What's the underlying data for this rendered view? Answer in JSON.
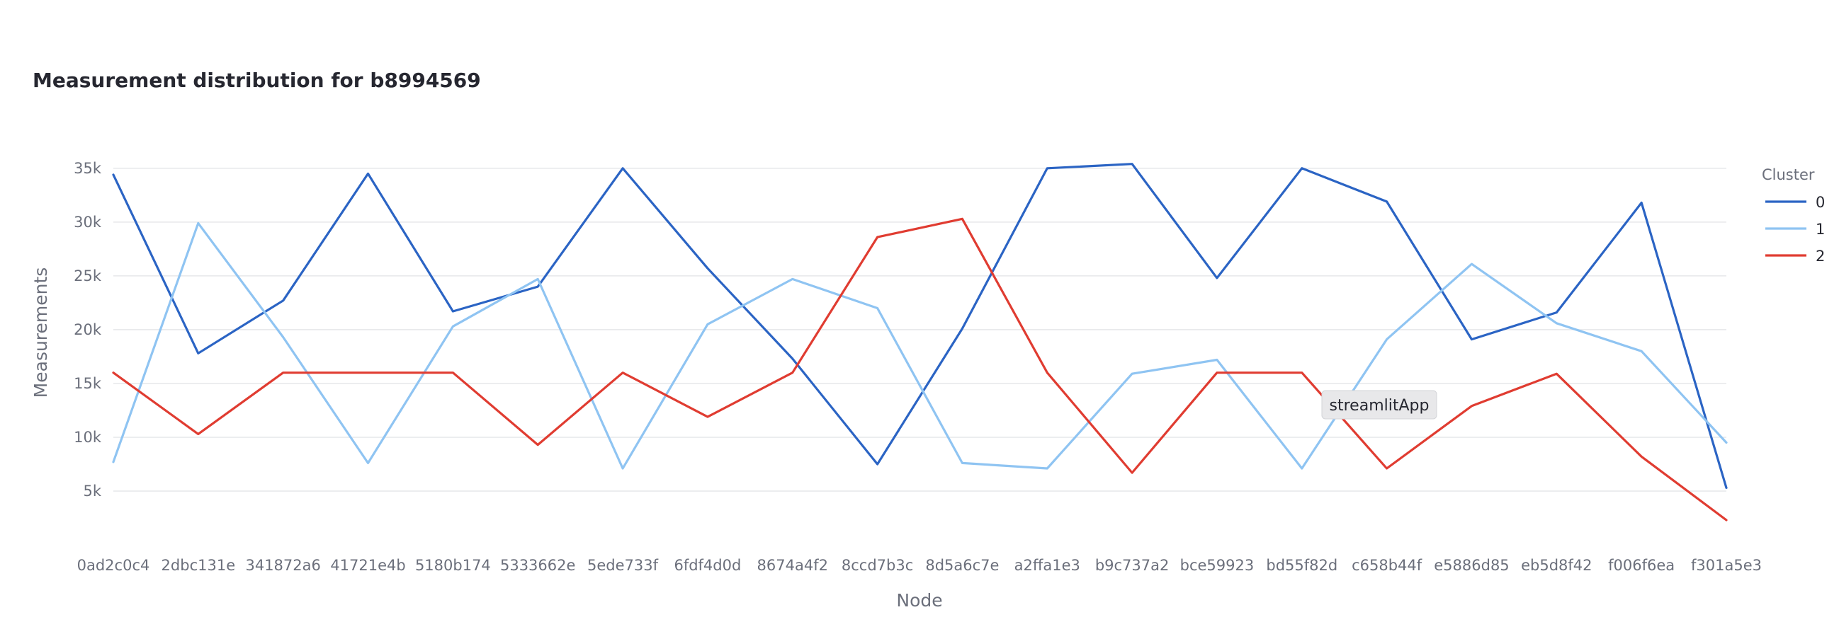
{
  "tooltip": {
    "text": "streamlitApp"
  },
  "chart_data": {
    "type": "line",
    "title": "Measurement distribution for b8994569",
    "xlabel": "Node",
    "ylabel": "Measurements",
    "ylim": [
      0,
      36500
    ],
    "yticks": [
      5000,
      10000,
      15000,
      20000,
      25000,
      30000,
      35000
    ],
    "ytick_labels": [
      "5k",
      "10k",
      "15k",
      "20k",
      "25k",
      "30k",
      "35k"
    ],
    "grid": true,
    "legend": {
      "title": "Cluster",
      "placement": "right"
    },
    "categories": [
      "0ad2c0c4",
      "2dbc131e",
      "341872a6",
      "41721e4b",
      "5180b174",
      "5333662e",
      "5ede733f",
      "6fdf4d0d",
      "8674a4f2",
      "8ccd7b3c",
      "8d5a6c7e",
      "a2ffa1e3",
      "b9c737a2",
      "bce59923",
      "bd55f82d",
      "c658b44f",
      "e5886d85",
      "eb5d8f42",
      "f006f6ea",
      "f301a5e3"
    ],
    "series": [
      {
        "name": "0",
        "color": "#2b64c4",
        "values": [
          34400,
          17800,
          22700,
          34500,
          21700,
          24000,
          35000,
          25700,
          17300,
          7500,
          20100,
          35000,
          35400,
          24800,
          35000,
          31900,
          19100,
          21600,
          31800,
          5300
        ]
      },
      {
        "name": "1",
        "color": "#8fc4f2",
        "values": [
          7700,
          29900,
          19300,
          7600,
          20300,
          24700,
          7100,
          20500,
          24700,
          22000,
          7600,
          7100,
          15900,
          17200,
          7100,
          19100,
          26100,
          20600,
          18000,
          9500
        ]
      },
      {
        "name": "2",
        "color": "#e03c31",
        "values": [
          16000,
          10300,
          16000,
          16000,
          16000,
          9300,
          16000,
          11900,
          16000,
          28600,
          30300,
          16000,
          6700,
          16000,
          16000,
          7100,
          12900,
          15900,
          8200,
          2300
        ]
      }
    ]
  }
}
